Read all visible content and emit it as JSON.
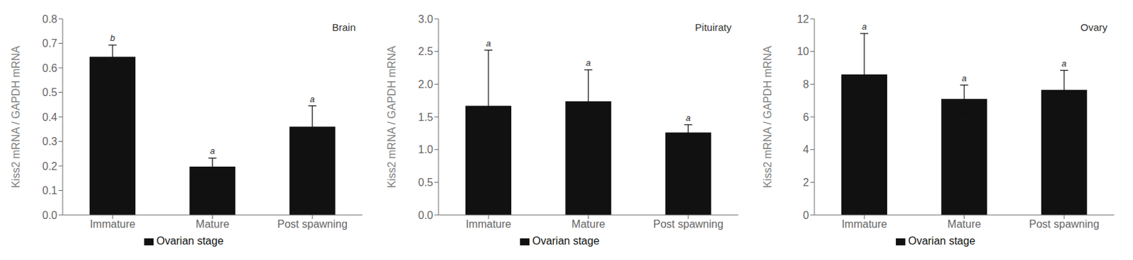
{
  "chart_data": [
    {
      "type": "bar",
      "title": "Brain",
      "ylabel": "Kiss2 mRNA / GAPDH mRNA",
      "categories": [
        "Immature",
        "Mature",
        "Post spawning"
      ],
      "series": [
        {
          "name": "Ovarian stage",
          "color": "#111111",
          "values": [
            0.645,
            0.197,
            0.36
          ],
          "errors": [
            0.048,
            0.035,
            0.085
          ]
        }
      ],
      "annotations": [
        "b",
        "a",
        "a"
      ],
      "ylim": [
        0,
        0.8
      ],
      "yticks": [
        {
          "value": 0,
          "label": "0.0"
        },
        0.1,
        0.2,
        0.3,
        0.4,
        0.5,
        0.6,
        0.7,
        0.8
      ],
      "grid": false,
      "legend": "bottom"
    },
    {
      "type": "bar",
      "title": "Pituiraty",
      "ylabel": "Kiss2 mRNA / GAPDH mRNA",
      "categories": [
        "Immature",
        "Mature",
        "Post spawning"
      ],
      "series": [
        {
          "name": "Ovarian stage",
          "color": "#111111",
          "values": [
            1.67,
            1.74,
            1.26
          ],
          "errors": [
            0.85,
            0.48,
            0.12
          ]
        }
      ],
      "annotations": [
        "a",
        "a",
        "a"
      ],
      "ylim": [
        0,
        3
      ],
      "yticks": [
        {
          "value": 0,
          "label": "0.0"
        },
        0.5,
        {
          "value": 1.0,
          "label": "1.0"
        },
        1.5,
        {
          "value": 2.0,
          "label": "2.0"
        },
        2.5,
        {
          "value": 3.0,
          "label": "3.0"
        }
      ],
      "grid": false,
      "legend": "bottom"
    },
    {
      "type": "bar",
      "title": "Ovary",
      "ylabel": "Kiss2 mRNA / GAPDH mRNA",
      "categories": [
        "Immature",
        "Mature",
        "Post spawning"
      ],
      "series": [
        {
          "name": "Ovarian stage",
          "color": "#111111",
          "values": [
            8.6,
            7.1,
            7.65
          ],
          "errors": [
            2.5,
            0.85,
            1.2
          ]
        }
      ],
      "annotations": [
        "a",
        "a",
        "a"
      ],
      "ylim": [
        0,
        12
      ],
      "yticks": [
        0,
        2,
        4,
        6,
        8,
        10,
        12
      ],
      "grid": false,
      "legend": "bottom"
    }
  ]
}
